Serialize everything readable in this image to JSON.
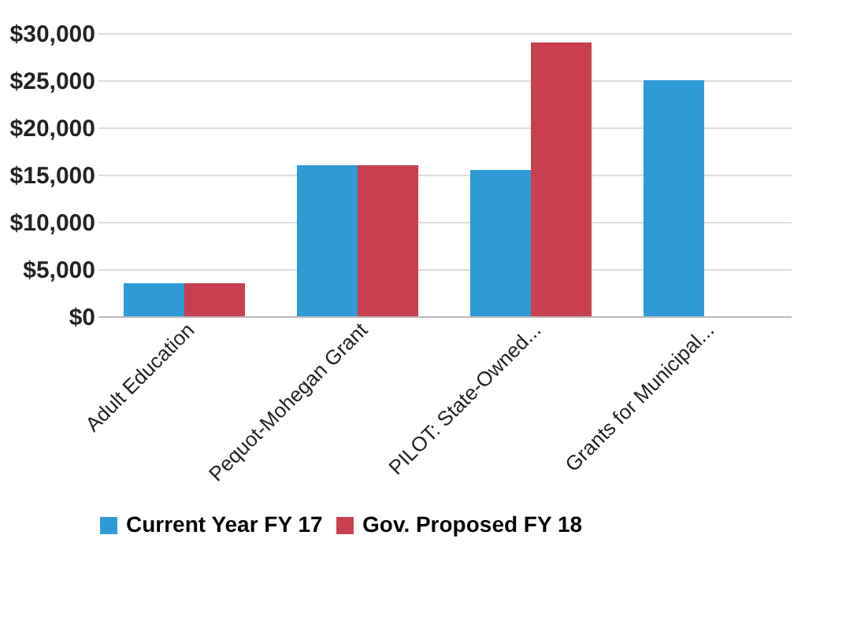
{
  "chart_data": {
    "type": "bar",
    "categories": [
      "Adult Education",
      "Pequot-Mohegan Grant",
      "PILOT: State-Owned...",
      "Grants for Municipal..."
    ],
    "series": [
      {
        "name": "Current Year FY 17",
        "color": "#2e9bd6",
        "values": [
          3500,
          16000,
          15500,
          25000
        ]
      },
      {
        "name": "Gov. Proposed  FY 18",
        "color": "#c8404f",
        "values": [
          3500,
          16000,
          29000,
          0
        ]
      }
    ],
    "ylim": [
      0,
      30000
    ],
    "yticks": [
      {
        "value": 0,
        "label": "$0"
      },
      {
        "value": 5000,
        "label": "$5,000"
      },
      {
        "value": 10000,
        "label": "$10,000"
      },
      {
        "value": 15000,
        "label": "$15,000"
      },
      {
        "value": 20000,
        "label": "$20,000"
      },
      {
        "value": 25000,
        "label": "$25,000"
      },
      {
        "value": 30000,
        "label": "$30,000"
      }
    ],
    "grid": "y",
    "legend": "bottom"
  }
}
